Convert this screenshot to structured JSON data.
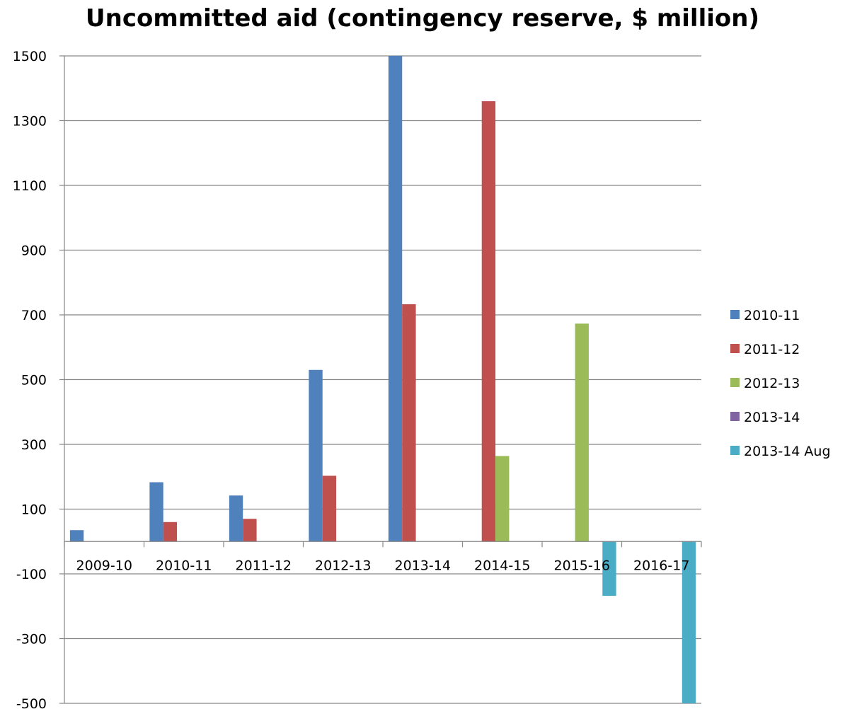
{
  "chart_data": {
    "type": "bar",
    "title": "Uncommitted aid (contingency reserve, $ million)",
    "xlabel": "",
    "ylabel": "",
    "ylim": [
      -500,
      1500
    ],
    "yticks": [
      -500,
      -300,
      -100,
      100,
      300,
      500,
      700,
      900,
      1100,
      1300,
      1500
    ],
    "grid": true,
    "legend_position": "right",
    "categories": [
      "2009-10",
      "2010-11",
      "2011-12",
      "2012-13",
      "2013-14",
      "2014-15",
      "2015-16",
      "2016-17"
    ],
    "series": [
      {
        "name": "2010-11",
        "color": "#4F81BD",
        "values": [
          35,
          183,
          142,
          530,
          1500,
          null,
          null,
          null
        ]
      },
      {
        "name": "2011-12",
        "color": "#C0504D",
        "values": [
          null,
          60,
          70,
          203,
          733,
          1360,
          null,
          null
        ]
      },
      {
        "name": "2012-13",
        "color": "#9BBB59",
        "values": [
          null,
          null,
          null,
          null,
          null,
          264,
          673,
          null
        ]
      },
      {
        "name": "2013-14",
        "color": "#8064A2",
        "values": [
          null,
          null,
          null,
          null,
          null,
          null,
          null,
          null
        ]
      },
      {
        "name": "2013-14 Aug",
        "color": "#4BACC6",
        "values": [
          null,
          null,
          null,
          null,
          null,
          null,
          -168,
          -510
        ]
      }
    ]
  }
}
